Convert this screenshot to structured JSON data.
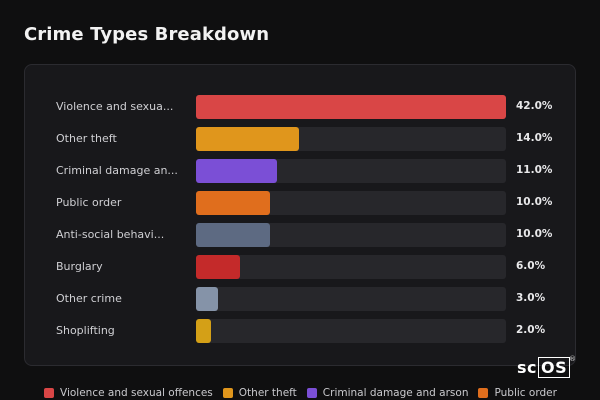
{
  "title": "Crime Types Breakdown",
  "rows": [
    {
      "label": "Violence and sexua...",
      "value": 42.0,
      "value_text": "42.0%",
      "color": "#d94646"
    },
    {
      "label": "Other theft",
      "value": 14.0,
      "value_text": "14.0%",
      "color": "#e0961c"
    },
    {
      "label": "Criminal damage an...",
      "value": 11.0,
      "value_text": "11.0%",
      "color": "#7b4fd6"
    },
    {
      "label": "Public order",
      "value": 10.0,
      "value_text": "10.0%",
      "color": "#e06e1d"
    },
    {
      "label": "Anti-social behavi...",
      "value": 10.0,
      "value_text": "10.0%",
      "color": "#5d6a82"
    },
    {
      "label": "Burglary",
      "value": 6.0,
      "value_text": "6.0%",
      "color": "#c42a2a"
    },
    {
      "label": "Other crime",
      "value": 3.0,
      "value_text": "3.0%",
      "color": "#8593a8"
    },
    {
      "label": "Shoplifting",
      "value": 2.0,
      "value_text": "2.0%",
      "color": "#d4a017"
    }
  ],
  "legend": [
    {
      "label": "Violence and sexual offences",
      "color": "#d94646"
    },
    {
      "label": "Other theft",
      "color": "#e0961c"
    },
    {
      "label": "Criminal damage and arson",
      "color": "#7b4fd6"
    },
    {
      "label": "Public order",
      "color": "#e06e1d"
    }
  ],
  "logo": {
    "prefix": "sc",
    "boxed": "OS",
    "mark": "®"
  }
}
